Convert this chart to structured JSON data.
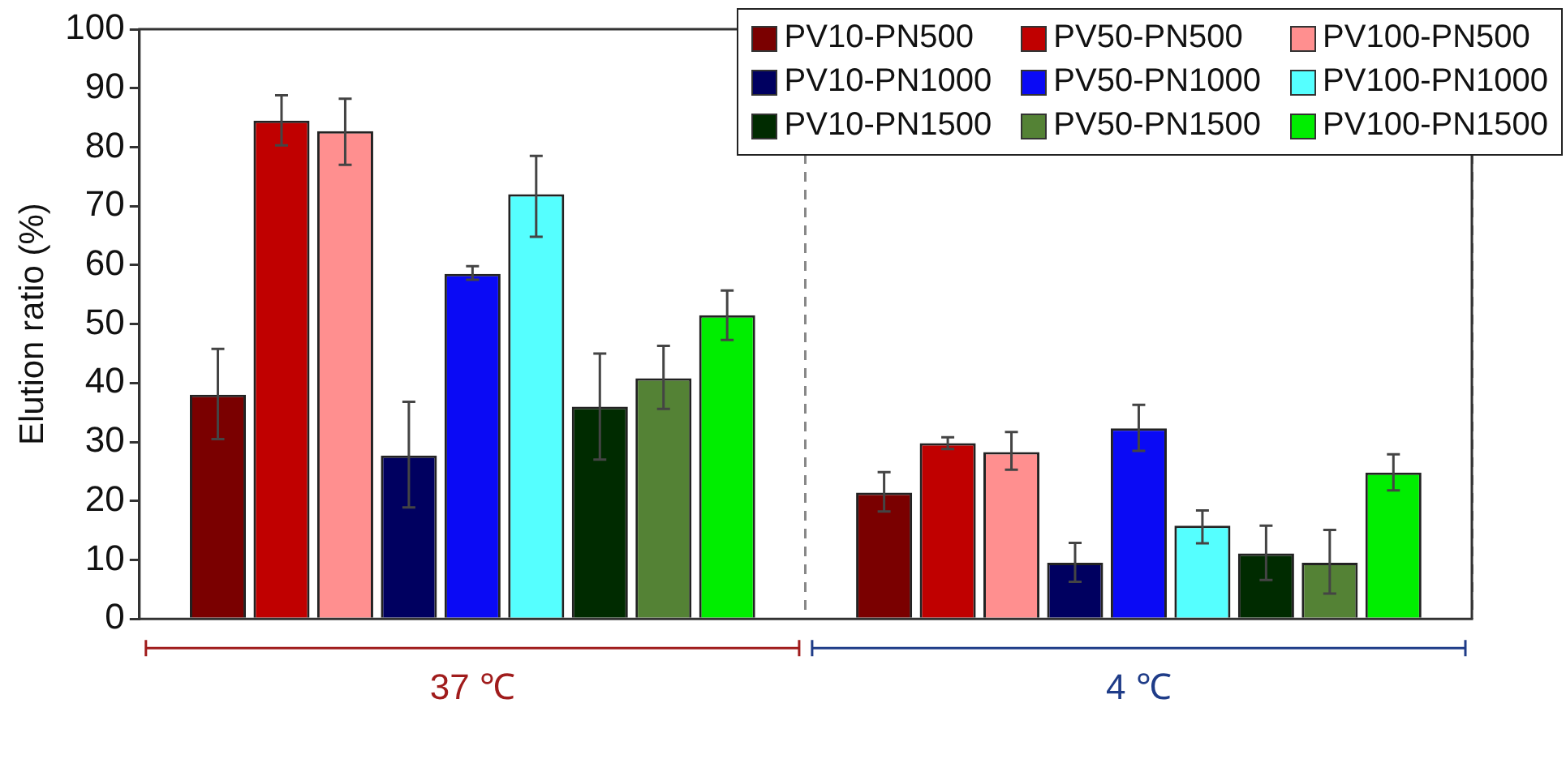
{
  "chart_data": {
    "type": "bar",
    "ylabel": "Elution ratio (%)",
    "categories": [
      "37 ℃",
      "4 ℃"
    ],
    "ylim": [
      0,
      100
    ],
    "yticks": [
      0,
      10,
      20,
      30,
      40,
      50,
      60,
      70,
      80,
      90,
      100
    ],
    "grid": "x",
    "legend": "top right",
    "series": [
      {
        "name": "PV10-PN500",
        "color": "#7a0000",
        "values": [
          38,
          21.4
        ],
        "errors": [
          [
            30.5,
            45.8
          ],
          [
            18.2,
            24.9
          ]
        ]
      },
      {
        "name": "PV50-PN500",
        "color": "#c00000",
        "values": [
          84.5,
          29.8
        ],
        "errors": [
          [
            80.3,
            88.8
          ],
          [
            28.8,
            30.8
          ]
        ]
      },
      {
        "name": "PV100-PN500",
        "color": "#ff8f8f",
        "values": [
          82.7,
          28.3
        ],
        "errors": [
          [
            77,
            88.2
          ],
          [
            25.3,
            31.7
          ]
        ]
      },
      {
        "name": "PV10-PN1000",
        "color": "#000060",
        "values": [
          27.7,
          9.5
        ],
        "errors": [
          [
            18.9,
            36.8
          ],
          [
            6.3,
            12.9
          ]
        ]
      },
      {
        "name": "PV50-PN1000",
        "color": "#0a0af5",
        "values": [
          58.5,
          32.3
        ],
        "errors": [
          [
            57.5,
            59.8
          ],
          [
            28.5,
            36.3
          ]
        ]
      },
      {
        "name": "PV100-PN1000",
        "color": "#55ffff",
        "values": [
          72,
          15.8
        ],
        "errors": [
          [
            64.8,
            78.5
          ],
          [
            12.8,
            18.4
          ]
        ]
      },
      {
        "name": "PV10-PN1500",
        "color": "#002b00",
        "values": [
          36,
          11.1
        ],
        "errors": [
          [
            27,
            45
          ],
          [
            6.6,
            15.8
          ]
        ]
      },
      {
        "name": "PV50-PN1500",
        "color": "#548235",
        "values": [
          40.8,
          9.5
        ],
        "errors": [
          [
            35.6,
            46.3
          ],
          [
            4.3,
            15.1
          ]
        ]
      },
      {
        "name": "PV100-PN1500",
        "color": "#00ee00",
        "values": [
          51.5,
          24.8
        ],
        "errors": [
          [
            47.3,
            55.7
          ],
          [
            21.8,
            27.9
          ]
        ]
      }
    ]
  }
}
